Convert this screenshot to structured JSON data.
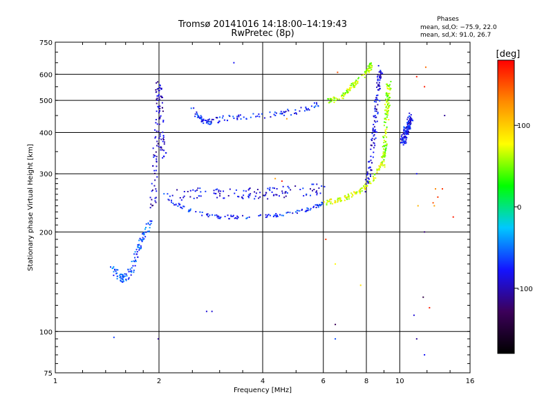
{
  "figure": {
    "title_line1": "Tromsø 20141016 14:18:00–14:19:43",
    "title_line2": "RwPretec (8p)"
  },
  "stats": {
    "heading": "Phases",
    "line_o": "mean, sd,O: −75.9, 22.0",
    "line_x": "mean, sd,X:  91.0, 26.7"
  },
  "chart_data": {
    "type": "scatter",
    "xlabel": "Frequency [MHz]",
    "ylabel": "Stationary phase Virtual Height [km]",
    "xscale": "log",
    "yscale": "log",
    "xlim": [
      1,
      16
    ],
    "ylim": [
      75,
      750
    ],
    "grid": true,
    "x_ticks": [
      1,
      2,
      4,
      6,
      8,
      10,
      16
    ],
    "x_tick_labels": [
      "1",
      "2",
      "4",
      "6",
      "8",
      "10",
      "16"
    ],
    "y_ticks": [
      75,
      100,
      200,
      300,
      400,
      500,
      600,
      750
    ],
    "y_tick_labels": [
      "75",
      "100",
      "200",
      "300",
      "400",
      "500",
      "600",
      "750"
    ],
    "colorbar": {
      "label": "[deg]",
      "range": [
        -180,
        180
      ],
      "ticks": [
        100,
        0,
        -100
      ],
      "tick_labels": [
        "100",
        "0",
        "-100"
      ],
      "colors": [
        "#000000",
        "#3c005a",
        "#1414ff",
        "#00c8ff",
        "#00ff00",
        "#ffff00",
        "#ff8c00",
        "#ff0000"
      ]
    },
    "traces": [
      {
        "name": "",
        "x": [
          1.45,
          1.5,
          1.55,
          1.6,
          1.65,
          1.7,
          1.75,
          1.8,
          1.85,
          1.9
        ],
        "y": [
          160,
          150,
          145,
          145,
          150,
          165,
          180,
          195,
          205,
          215
        ],
        "phase": -60,
        "spread": 0.03
      },
      {
        "name": "",
        "x": [
          1.92,
          1.95,
          1.97,
          1.99,
          2.0,
          2.02,
          2.04,
          2.06
        ],
        "y": [
          240,
          300,
          380,
          450,
          550,
          480,
          400,
          330
        ],
        "phase": -95,
        "spread": 0.04
      },
      {
        "name": "",
        "x": [
          2.05,
          2.2,
          2.4,
          2.6,
          2.8,
          3.0,
          3.3,
          3.6,
          4.0,
          4.5,
          5.0,
          5.5,
          5.8,
          6.0
        ],
        "y": [
          260,
          245,
          235,
          228,
          224,
          222,
          222,
          222,
          223,
          225,
          230,
          235,
          240,
          245
        ],
        "phase": -70,
        "spread": 0.012
      },
      {
        "name": "",
        "x": [
          2.1,
          2.4,
          2.7,
          3.0,
          3.4,
          3.8,
          4.2,
          4.6,
          5.0,
          5.5,
          6.0
        ],
        "y": [
          260,
          260,
          262,
          260,
          262,
          262,
          262,
          265,
          265,
          268,
          270
        ],
        "phase": -85,
        "spread": 0.04
      },
      {
        "name": "",
        "x": [
          2.5,
          2.6,
          2.7,
          2.8,
          2.9,
          3.0,
          3.3,
          3.6,
          4.0,
          4.5,
          5.0,
          5.5,
          5.9
        ],
        "y": [
          470,
          445,
          435,
          430,
          432,
          440,
          445,
          448,
          450,
          455,
          465,
          478,
          490
        ],
        "phase": -75,
        "spread": 0.02
      },
      {
        "name": "",
        "x": [
          6.2,
          6.5,
          6.8,
          7.0,
          7.2,
          7.5,
          7.8,
          8.1,
          8.3
        ],
        "y": [
          495,
          505,
          515,
          530,
          545,
          565,
          590,
          620,
          640
        ],
        "phase": 60,
        "spread": 0.02
      },
      {
        "name": "",
        "x": [
          6.0,
          6.4,
          6.8,
          7.2,
          7.6,
          8.0,
          8.4,
          8.7,
          8.9,
          9.1
        ],
        "y": [
          245,
          248,
          252,
          258,
          266,
          276,
          292,
          310,
          330,
          355
        ],
        "phase": 70,
        "spread": 0.018
      },
      {
        "name": "",
        "x": [
          8.0,
          8.2,
          8.4,
          8.5,
          8.6,
          8.7,
          8.8
        ],
        "y": [
          270,
          320,
          380,
          440,
          500,
          560,
          620
        ],
        "phase": -90,
        "spread": 0.03
      },
      {
        "name": "",
        "x": [
          9.0,
          9.1,
          9.2,
          9.3
        ],
        "y": [
          320,
          400,
          480,
          560
        ],
        "phase": 60,
        "spread": 0.03
      },
      {
        "name": "",
        "x": [
          10.2,
          10.4,
          10.6,
          10.8
        ],
        "y": [
          370,
          400,
          420,
          450
        ],
        "phase": -80,
        "spread": 0.03
      }
    ],
    "scatter_points": [
      {
        "x": 3.3,
        "y": 650,
        "phase": -80
      },
      {
        "x": 2.85,
        "y": 115,
        "phase": -90
      },
      {
        "x": 2.75,
        "y": 115,
        "phase": -90
      },
      {
        "x": 1.48,
        "y": 96,
        "phase": -65
      },
      {
        "x": 1.99,
        "y": 95,
        "phase": -110
      },
      {
        "x": 4.55,
        "y": 285,
        "phase": 170
      },
      {
        "x": 4.35,
        "y": 290,
        "phase": 120
      },
      {
        "x": 4.7,
        "y": 440,
        "phase": 120
      },
      {
        "x": 6.5,
        "y": 160,
        "phase": 80
      },
      {
        "x": 6.5,
        "y": 95,
        "phase": -60
      },
      {
        "x": 6.5,
        "y": 105,
        "phase": -130
      },
      {
        "x": 6.1,
        "y": 190,
        "phase": 160
      },
      {
        "x": 6.6,
        "y": 608,
        "phase": 150
      },
      {
        "x": 7.7,
        "y": 138,
        "phase": 90
      },
      {
        "x": 11.9,
        "y": 630,
        "phase": 140
      },
      {
        "x": 11.8,
        "y": 550,
        "phase": 170
      },
      {
        "x": 11.2,
        "y": 590,
        "phase": 170
      },
      {
        "x": 11.8,
        "y": 200,
        "phase": -120
      },
      {
        "x": 11.7,
        "y": 127,
        "phase": -140
      },
      {
        "x": 12.2,
        "y": 118,
        "phase": 170
      },
      {
        "x": 11.2,
        "y": 95,
        "phase": -110
      },
      {
        "x": 11.8,
        "y": 85,
        "phase": -80
      },
      {
        "x": 12.7,
        "y": 270,
        "phase": 130
      },
      {
        "x": 12.9,
        "y": 255,
        "phase": 160
      },
      {
        "x": 12.5,
        "y": 245,
        "phase": 150
      },
      {
        "x": 14.3,
        "y": 222,
        "phase": 170
      },
      {
        "x": 13.3,
        "y": 270,
        "phase": 160
      },
      {
        "x": 13.5,
        "y": 450,
        "phase": -110
      },
      {
        "x": 12.6,
        "y": 240,
        "phase": 120
      },
      {
        "x": 11.3,
        "y": 240,
        "phase": 110
      },
      {
        "x": 11.2,
        "y": 300,
        "phase": -80
      },
      {
        "x": 11.0,
        "y": 112,
        "phase": -90
      }
    ]
  }
}
